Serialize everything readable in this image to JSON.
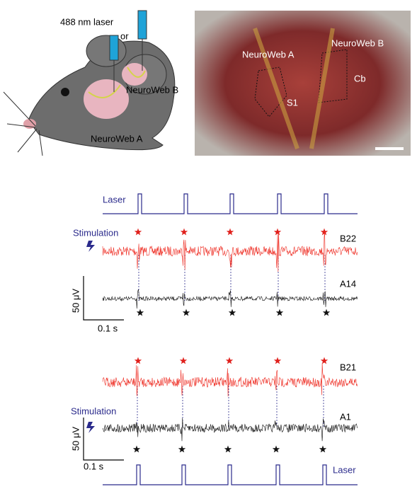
{
  "illustration": {
    "laser": "488 nm laser",
    "or": "or",
    "web_b": "NeuroWeb B",
    "web_a": "NeuroWeb A"
  },
  "photo": {
    "web_a": "NeuroWeb A",
    "web_b": "NeuroWeb B",
    "s1": "S1",
    "cb": "Cb"
  },
  "panel1": {
    "laser": "Laser",
    "stimulation": "Stimulation",
    "top_channel": "B22",
    "bottom_channel": "A14",
    "scale_v": "50 μV",
    "scale_t": "0.1 s"
  },
  "panel2": {
    "top_channel": "B21",
    "stimulation": "Stimulation",
    "bottom_channel": "A1",
    "scale_v": "50 μV",
    "scale_t": "0.1 s",
    "laser": "Laser"
  }
}
